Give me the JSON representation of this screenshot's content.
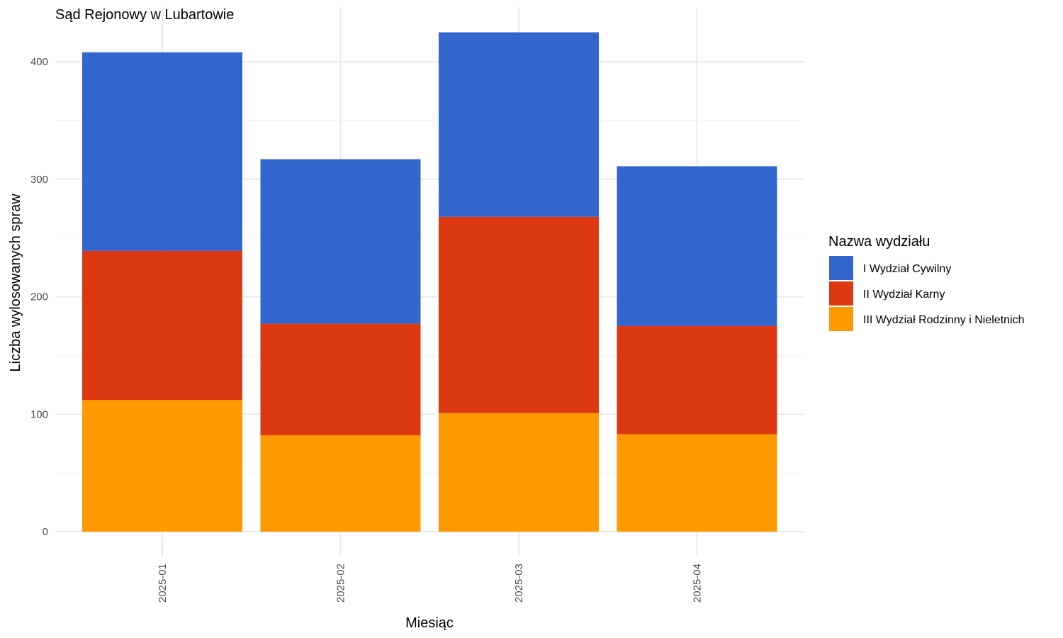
{
  "chart_data": {
    "type": "bar",
    "stacked": true,
    "title": "Sąd Rejonowy w Lubartowie",
    "xlabel": "Miesiąc",
    "ylabel": "Liczba wylosowanych spraw",
    "categories": [
      "2025-01",
      "2025-02",
      "2025-03",
      "2025-04"
    ],
    "ylim": [
      0,
      440
    ],
    "yticks": [
      0,
      100,
      200,
      300,
      400
    ],
    "grid": true,
    "legend": {
      "title": "Nazwa wydziału",
      "placement": "right"
    },
    "series": [
      {
        "name": "III Wydział Rodzinny i Nieletnich",
        "color": "#FF9900",
        "values": [
          112,
          82,
          101,
          83
        ]
      },
      {
        "name": "II Wydział Karny",
        "color": "#DC3912",
        "values": [
          127,
          95,
          167,
          92
        ]
      },
      {
        "name": "I Wydział Cywilny",
        "color": "#3366CC",
        "values": [
          169,
          140,
          157,
          136
        ]
      }
    ],
    "legend_order": [
      "I Wydział Cywilny",
      "II Wydział Karny",
      "III Wydział Rodzinny i Nieletnich"
    ]
  }
}
